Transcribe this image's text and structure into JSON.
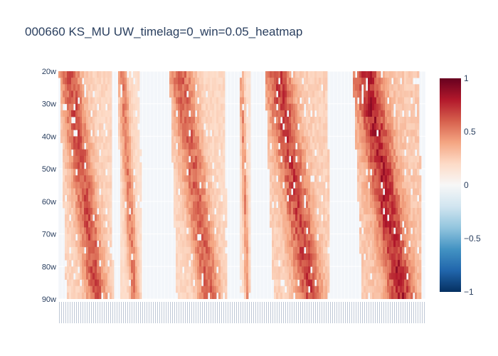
{
  "chart_data": {
    "type": "heatmap",
    "title": "000660 KS_MU UW_timelag=0_win=0.05_heatmap",
    "y_ticks": [
      "20w",
      "30w",
      "40w",
      "50w",
      "60w",
      "70w",
      "80w",
      "90w"
    ],
    "y_range": [
      20,
      90
    ],
    "colorbar": {
      "min": -1,
      "max": 1,
      "ticks": [
        {
          "value": 1,
          "label": "1"
        },
        {
          "value": 0.5,
          "label": "0.5"
        },
        {
          "value": 0,
          "label": "0"
        },
        {
          "value": -0.5,
          "label": "−0.5"
        },
        {
          "value": -1,
          "label": "−1"
        }
      ],
      "colorscale": [
        "#053061",
        "#2166ac",
        "#4393c3",
        "#92c5de",
        "#d1e5f0",
        "#f7f7f7",
        "#fddbc7",
        "#f4a582",
        "#d6604d",
        "#b2182b",
        "#67001f"
      ]
    },
    "grid": true,
    "band_peaks": [
      {
        "x0": 0.0,
        "x1": 0.14,
        "peak": 0.75
      },
      {
        "x0": 0.16,
        "x1": 0.22,
        "peak": 0.6
      },
      {
        "x0": 0.3,
        "x1": 0.45,
        "peak": 0.7
      },
      {
        "x0": 0.49,
        "x1": 0.52,
        "peak": 0.55
      },
      {
        "x0": 0.56,
        "x1": 0.73,
        "peak": 0.8
      },
      {
        "x0": 0.8,
        "x1": 0.98,
        "peak": 0.9
      }
    ]
  }
}
